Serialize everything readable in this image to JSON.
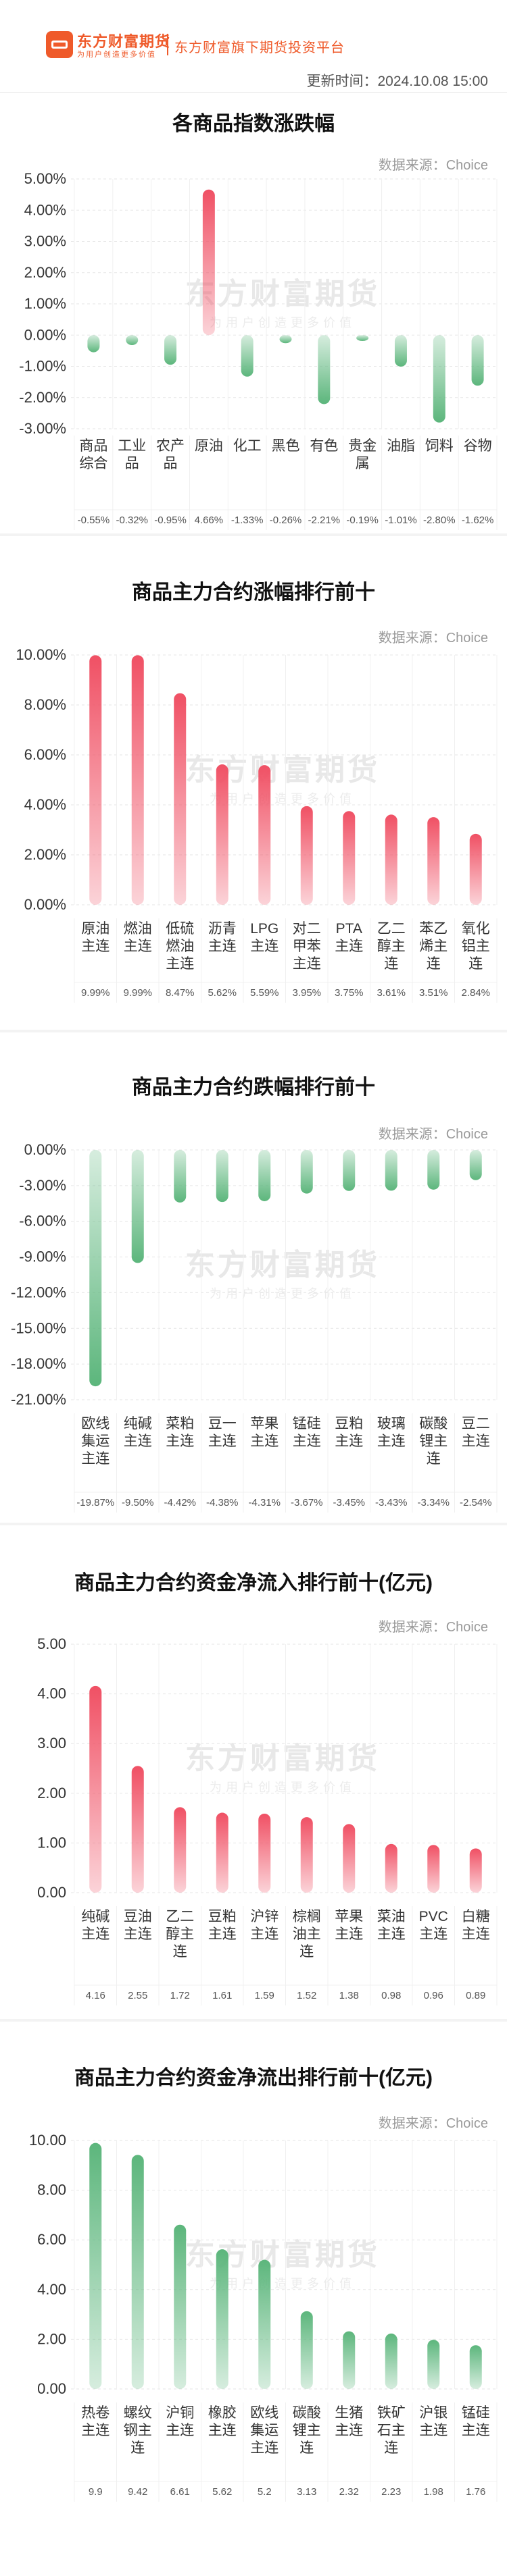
{
  "header": {
    "brand": "东方财富期货",
    "brand_sub": "为用户创造更多价值",
    "platform": "东方财富旗下期货投资平台",
    "update_time": "更新时间：2024.10.08 15:00"
  },
  "watermark": {
    "main": "东方财富期货",
    "sub": "为用户创造更多价值"
  },
  "colors": {
    "red": "#f05064",
    "green": "#5cb67c",
    "brand": "#ef5a2a"
  },
  "chart_data": [
    {
      "type": "bar",
      "title": "各商品指数涨跌幅",
      "source": "数据来源：Choice",
      "categories": [
        [
          "商品",
          "综合"
        ],
        [
          "工业",
          "品"
        ],
        [
          "农产",
          "品"
        ],
        [
          "原油"
        ],
        [
          "化工"
        ],
        [
          "黑色"
        ],
        [
          "有色"
        ],
        [
          "贵金",
          "属"
        ],
        [
          "油脂"
        ],
        [
          "饲料"
        ],
        [
          "谷物"
        ]
      ],
      "values": [
        -0.55,
        -0.32,
        -0.95,
        4.66,
        -1.33,
        -0.26,
        -2.21,
        -0.19,
        -1.01,
        -2.8,
        -1.62
      ],
      "value_labels": [
        "-0.55%",
        "-0.32%",
        "-0.95%",
        "4.66%",
        "-1.33%",
        "-0.26%",
        "-2.21%",
        "-0.19%",
        "-1.01%",
        "-2.80%",
        "-1.62%"
      ],
      "ylim": [
        -3,
        5
      ],
      "yticks": [
        5,
        4,
        3,
        2,
        1,
        0,
        -1,
        -2,
        -3
      ],
      "ytick_labels": [
        "5.00%",
        "4.00%",
        "3.00%",
        "2.00%",
        "1.00%",
        "0.00%",
        "-1.00%",
        "-2.00%",
        "-3.00%"
      ],
      "bar_colors": [
        "#5cb67c",
        "#5cb67c",
        "#5cb67c",
        "#f05064",
        "#5cb67c",
        "#5cb67c",
        "#5cb67c",
        "#5cb67c",
        "#5cb67c",
        "#5cb67c",
        "#5cb67c"
      ],
      "grid": true
    },
    {
      "type": "bar",
      "title": "商品主力合约涨幅排行前十",
      "source": "数据来源：Choice",
      "categories": [
        [
          "原油",
          "主连"
        ],
        [
          "燃油",
          "主连"
        ],
        [
          "低硫",
          "燃油",
          "主连"
        ],
        [
          "沥青",
          "主连"
        ],
        [
          "LPG",
          "主连"
        ],
        [
          "对二",
          "甲苯",
          "主连"
        ],
        [
          "PTA",
          "主连"
        ],
        [
          "乙二",
          "醇主",
          "连"
        ],
        [
          "苯乙",
          "烯主",
          "连"
        ],
        [
          "氧化",
          "铝主",
          "连"
        ]
      ],
      "values": [
        9.99,
        9.99,
        8.47,
        5.62,
        5.59,
        3.95,
        3.75,
        3.61,
        3.51,
        2.84
      ],
      "value_labels": [
        "9.99%",
        "9.99%",
        "8.47%",
        "5.62%",
        "5.59%",
        "3.95%",
        "3.75%",
        "3.61%",
        "3.51%",
        "2.84%"
      ],
      "ylim": [
        0,
        10
      ],
      "yticks": [
        10,
        8,
        6,
        4,
        2,
        0
      ],
      "ytick_labels": [
        "10.00%",
        "8.00%",
        "6.00%",
        "4.00%",
        "2.00%",
        "0.00%"
      ],
      "bar_color": "#f05064",
      "grid": true
    },
    {
      "type": "bar",
      "title": "商品主力合约跌幅排行前十",
      "source": "数据来源：Choice",
      "categories": [
        [
          "欧线",
          "集运",
          "主连"
        ],
        [
          "纯碱",
          "主连"
        ],
        [
          "菜粕",
          "主连"
        ],
        [
          "豆一",
          "主连"
        ],
        [
          "苹果",
          "主连"
        ],
        [
          "锰硅",
          "主连"
        ],
        [
          "豆粕",
          "主连"
        ],
        [
          "玻璃",
          "主连"
        ],
        [
          "碳酸",
          "锂主",
          "连"
        ],
        [
          "豆二",
          "主连"
        ]
      ],
      "values": [
        -19.87,
        -9.5,
        -4.42,
        -4.38,
        -4.31,
        -3.67,
        -3.45,
        -3.43,
        -3.34,
        -2.54
      ],
      "value_labels": [
        "-19.87%",
        "-9.50%",
        "-4.42%",
        "-4.38%",
        "-4.31%",
        "-3.67%",
        "-3.45%",
        "-3.43%",
        "-3.34%",
        "-2.54%"
      ],
      "ylim": [
        -21,
        0
      ],
      "yticks": [
        0,
        -3,
        -6,
        -9,
        -12,
        -15,
        -18,
        -21
      ],
      "ytick_labels": [
        "0.00%",
        "-3.00%",
        "-6.00%",
        "-9.00%",
        "-12.00%",
        "-15.00%",
        "-18.00%",
        "-21.00%"
      ],
      "bar_color": "#5cb67c",
      "grid": true
    },
    {
      "type": "bar",
      "title": "商品主力合约资金净流入排行前十(亿元)",
      "source": "数据来源：Choice",
      "categories": [
        [
          "纯碱",
          "主连"
        ],
        [
          "豆油",
          "主连"
        ],
        [
          "乙二",
          "醇主",
          "连"
        ],
        [
          "豆粕",
          "主连"
        ],
        [
          "沪锌",
          "主连"
        ],
        [
          "棕榈",
          "油主",
          "连"
        ],
        [
          "苹果",
          "主连"
        ],
        [
          "菜油",
          "主连"
        ],
        [
          "PVC",
          "主连"
        ],
        [
          "白糖",
          "主连"
        ]
      ],
      "values": [
        4.16,
        2.55,
        1.72,
        1.61,
        1.59,
        1.52,
        1.38,
        0.98,
        0.96,
        0.89
      ],
      "value_labels": [
        "4.16",
        "2.55",
        "1.72",
        "1.61",
        "1.59",
        "1.52",
        "1.38",
        "0.98",
        "0.96",
        "0.89"
      ],
      "ylim": [
        0,
        5
      ],
      "yticks": [
        5,
        4,
        3,
        2,
        1,
        0
      ],
      "ytick_labels": [
        "5.00",
        "4.00",
        "3.00",
        "2.00",
        "1.00",
        "0.00"
      ],
      "bar_color": "#f05064",
      "grid": true
    },
    {
      "type": "bar",
      "title": "商品主力合约资金净流出排行前十(亿元)",
      "source": "数据来源：Choice",
      "categories": [
        [
          "热卷",
          "主连"
        ],
        [
          "螺纹",
          "钢主",
          "连"
        ],
        [
          "沪铜",
          "主连"
        ],
        [
          "橡胶",
          "主连"
        ],
        [
          "欧线",
          "集运",
          "主连"
        ],
        [
          "碳酸",
          "锂主",
          "连"
        ],
        [
          "生猪",
          "主连"
        ],
        [
          "铁矿",
          "石主",
          "连"
        ],
        [
          "沪银",
          "主连"
        ],
        [
          "锰硅",
          "主连"
        ]
      ],
      "values": [
        9.9,
        9.42,
        6.61,
        5.62,
        5.2,
        3.13,
        2.32,
        2.23,
        1.98,
        1.76
      ],
      "value_labels": [
        "9.9",
        "9.42",
        "6.61",
        "5.62",
        "5.2",
        "3.13",
        "2.32",
        "2.23",
        "1.98",
        "1.76"
      ],
      "ylim": [
        0,
        10
      ],
      "yticks": [
        10,
        8,
        6,
        4,
        2,
        0
      ],
      "ytick_labels": [
        "10.00",
        "8.00",
        "6.00",
        "4.00",
        "2.00",
        "0.00"
      ],
      "bar_color": "#5cb67c",
      "grid": true
    }
  ]
}
